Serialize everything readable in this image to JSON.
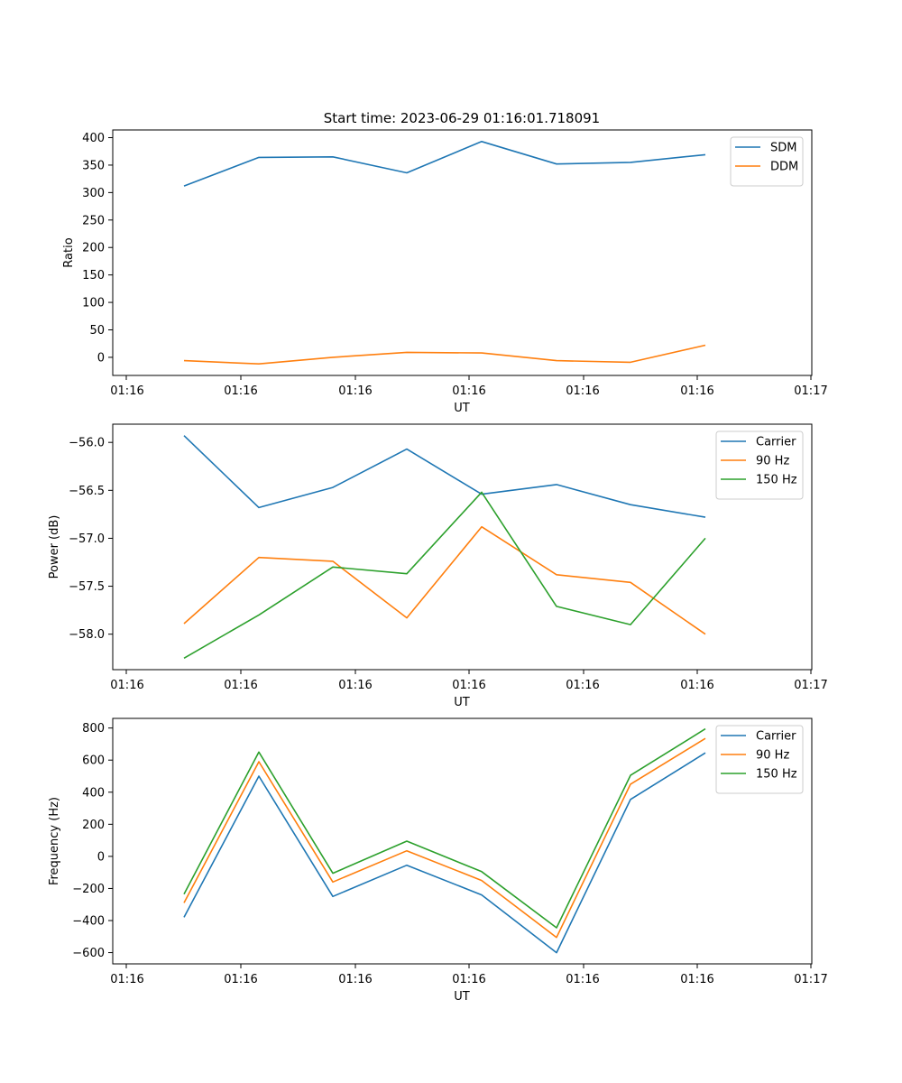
{
  "figure": {
    "title": "Start time: 2023-06-29 01:16:01.718091"
  },
  "chart_data": [
    {
      "type": "line",
      "title": "Start time: 2023-06-29 01:16:01.718091",
      "xlabel": "UT",
      "ylabel": "Ratio",
      "x_tick_labels": [
        "01:16",
        "01:16",
        "01:16",
        "01:16",
        "01:16",
        "01:16",
        "01:16",
        "01:17"
      ],
      "y_ticks": [
        0,
        50,
        100,
        150,
        200,
        250,
        300,
        350,
        400
      ],
      "ylim": [
        -33,
        414
      ],
      "legend_position": "top-right",
      "grid": false,
      "series": [
        {
          "name": "SDM",
          "color": "#1f77b4",
          "values": [
            312,
            364,
            365,
            336,
            393,
            352,
            355,
            369
          ]
        },
        {
          "name": "DDM",
          "color": "#ff7f0e",
          "values": [
            -6,
            -12,
            0,
            9,
            8,
            -6,
            -9,
            22
          ]
        }
      ]
    },
    {
      "type": "line",
      "title": "",
      "xlabel": "UT",
      "ylabel": "Power (dB)",
      "x_tick_labels": [
        "01:16",
        "01:16",
        "01:16",
        "01:16",
        "01:16",
        "01:16",
        "01:16",
        "01:17"
      ],
      "y_ticks": [
        -58.0,
        -57.5,
        -57.0,
        -56.5,
        -56.0
      ],
      "y_tick_labels": [
        "−58.0",
        "−57.5",
        "−57.0",
        "−56.5",
        "−56.0"
      ],
      "ylim": [
        -58.37,
        -55.81
      ],
      "legend_position": "top-right",
      "grid": false,
      "series": [
        {
          "name": "Carrier",
          "color": "#1f77b4",
          "values": [
            -55.93,
            -56.68,
            -56.47,
            -56.07,
            -56.54,
            -56.44,
            -56.65,
            -56.78
          ]
        },
        {
          "name": "90 Hz",
          "color": "#ff7f0e",
          "values": [
            -57.89,
            -57.2,
            -57.24,
            -57.83,
            -56.88,
            -57.38,
            -57.46,
            -58.0
          ]
        },
        {
          "name": "150 Hz",
          "color": "#2ca02c",
          "values": [
            -58.25,
            -57.8,
            -57.3,
            -57.37,
            -56.52,
            -57.71,
            -57.9,
            -57.0
          ]
        }
      ]
    },
    {
      "type": "line",
      "title": "",
      "xlabel": "UT",
      "ylabel": "Frequency (Hz)",
      "x_tick_labels": [
        "01:16",
        "01:16",
        "01:16",
        "01:16",
        "01:16",
        "01:16",
        "01:16",
        "01:17"
      ],
      "y_ticks": [
        -600,
        -400,
        -200,
        0,
        200,
        400,
        600,
        800
      ],
      "y_tick_labels": [
        "−600",
        "−400",
        "−200",
        "0",
        "200",
        "400",
        "600",
        "800"
      ],
      "ylim": [
        -670,
        860
      ],
      "legend_position": "top-right",
      "grid": false,
      "series": [
        {
          "name": "Carrier",
          "color": "#1f77b4",
          "values": [
            -380,
            500,
            -250,
            -55,
            -240,
            -600,
            355,
            645
          ]
        },
        {
          "name": "90 Hz",
          "color": "#ff7f0e",
          "values": [
            -290,
            590,
            -160,
            35,
            -150,
            -505,
            450,
            735
          ]
        },
        {
          "name": "150 Hz",
          "color": "#2ca02c",
          "values": [
            -235,
            650,
            -105,
            95,
            -95,
            -445,
            505,
            795
          ]
        }
      ]
    }
  ]
}
